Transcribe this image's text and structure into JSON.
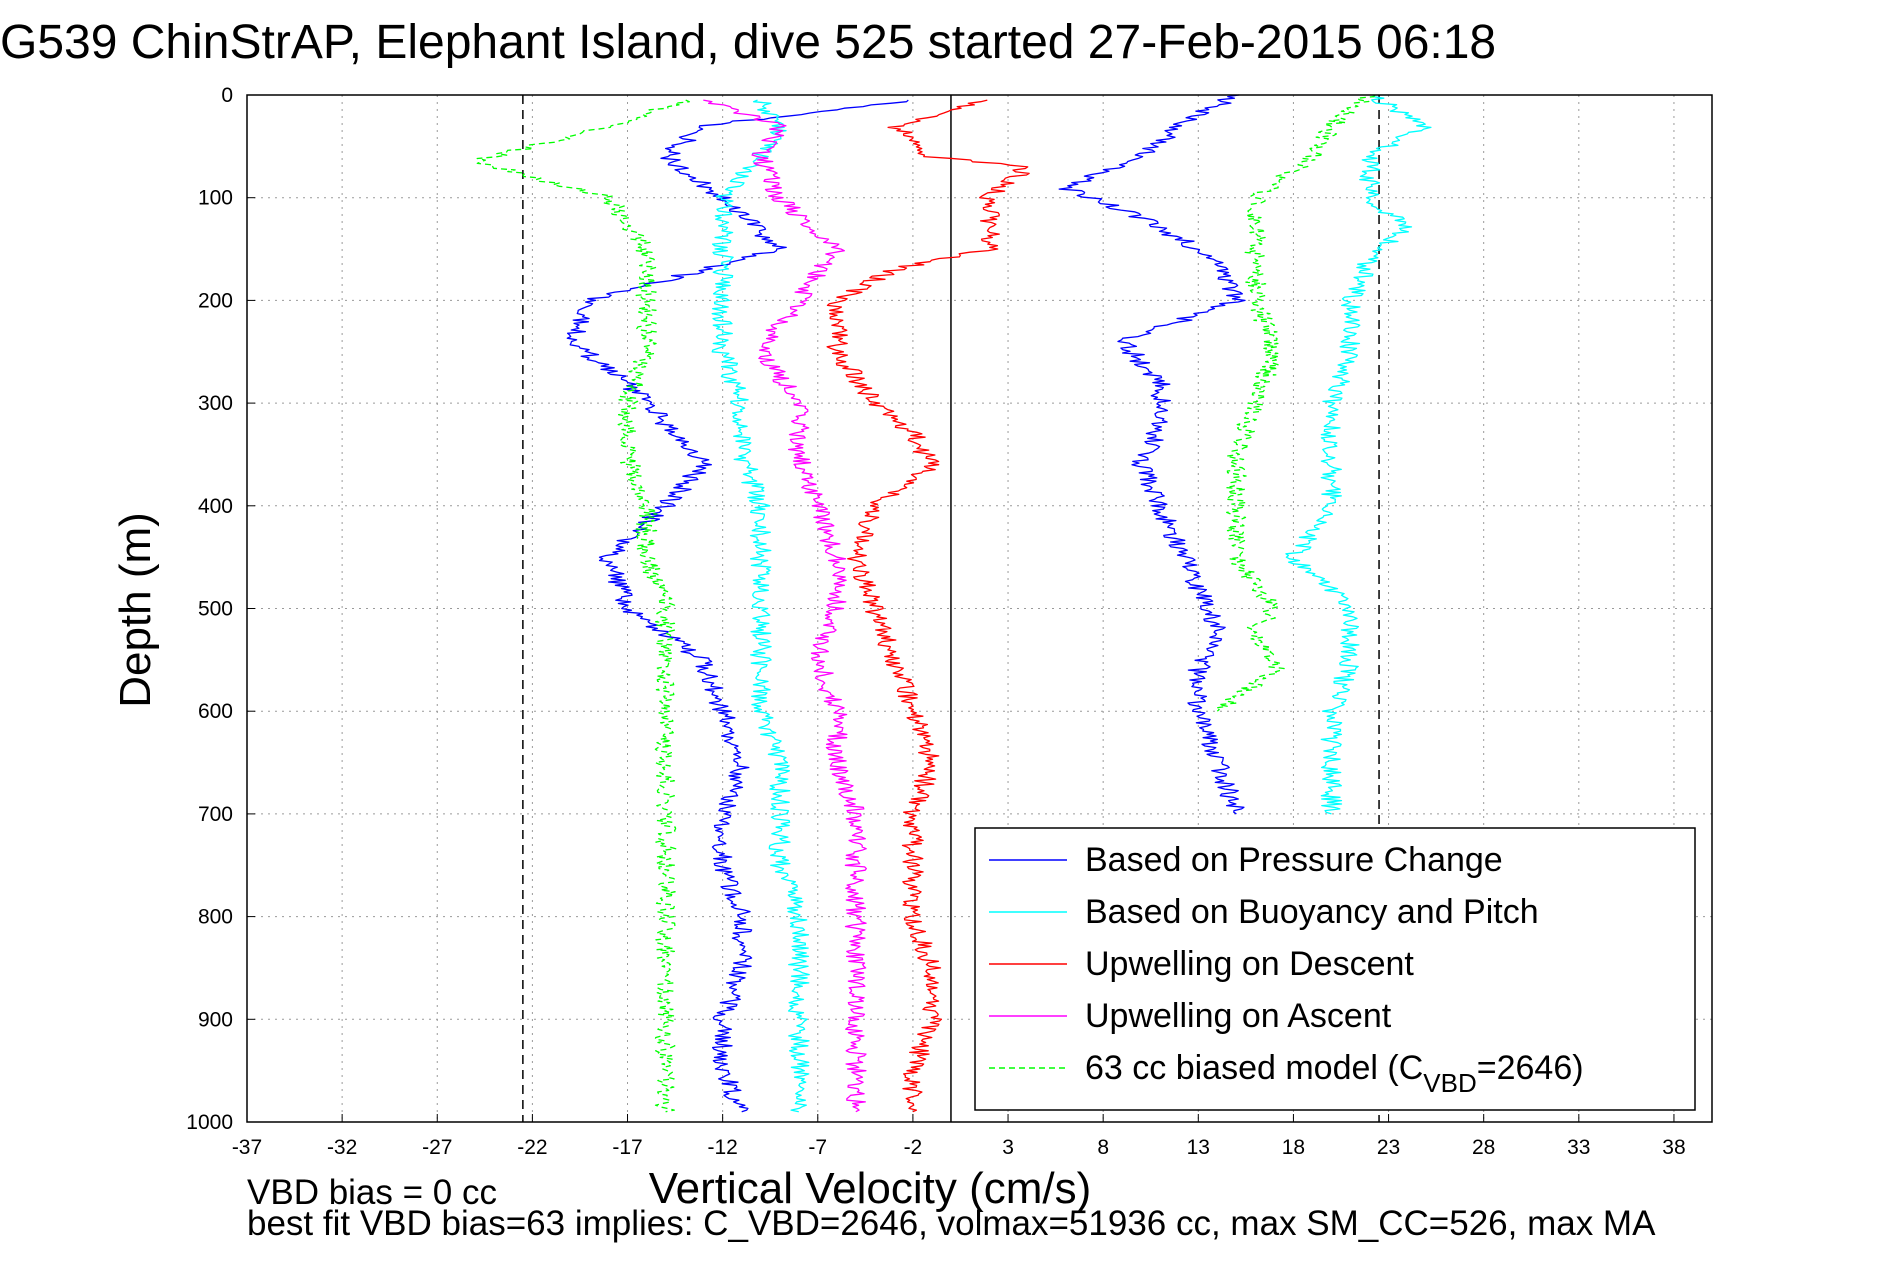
{
  "chart_data": {
    "type": "line",
    "title": "G539 ChinStrAP, Elephant Island, dive 525 started 27-Feb-2015 06:18",
    "xlabel": "Vertical Velocity (cm/s)",
    "ylabel": "Depth (m)",
    "xlim": [
      -37,
      40
    ],
    "ylim": [
      1000,
      0
    ],
    "y_reversed": true,
    "grid": true,
    "xticks": [
      -37,
      -32,
      -27,
      -22,
      -17,
      -12,
      -7,
      -2,
      3,
      8,
      13,
      18,
      23,
      28,
      33,
      38
    ],
    "yticks": [
      0,
      100,
      200,
      300,
      400,
      500,
      600,
      700,
      800,
      900,
      1000
    ],
    "legend_position": "bottom-right",
    "reference_lines": [
      {
        "x": -22.5,
        "style": "dashed",
        "color": "#000000"
      },
      {
        "x": 22.5,
        "style": "dashed",
        "color": "#000000"
      },
      {
        "x": 0,
        "style": "solid",
        "color": "#000000"
      }
    ],
    "series": [
      {
        "name": "Based on Pressure Change",
        "color": "#0000ff",
        "style": "solid",
        "y": [
          5,
          30,
          60,
          100,
          150,
          200,
          240,
          280,
          320,
          360,
          400,
          450,
          500,
          550,
          600,
          650,
          700,
          750,
          800,
          850,
          900,
          950,
          990
        ],
        "x": [
          -2,
          -13,
          -15,
          -12,
          -9,
          -19,
          -20,
          -17,
          -15,
          -13,
          -15,
          -18,
          -17,
          -13,
          -12,
          -11,
          -12,
          -12,
          -11,
          -11,
          -12,
          -12,
          -11
        ]
      },
      {
        "name": "Based on Buoyancy and Pitch",
        "color": "#00ffff",
        "style": "solid",
        "y": [
          5,
          30,
          60,
          100,
          150,
          200,
          250,
          300,
          350,
          400,
          450,
          500,
          550,
          600,
          650,
          700,
          750,
          800,
          850,
          900,
          950,
          990
        ],
        "x": [
          -10,
          -9,
          -10,
          -12,
          -12,
          -12,
          -12,
          -11,
          -11,
          -10,
          -10,
          -10,
          -10,
          -10,
          -9,
          -9,
          -9,
          -8,
          -8,
          -8,
          -8,
          -8
        ]
      },
      {
        "name": "Upwelling on Descent",
        "color": "#ff0000",
        "style": "solid",
        "y": [
          5,
          30,
          60,
          70,
          100,
          150,
          170,
          200,
          250,
          300,
          330,
          360,
          400,
          450,
          500,
          550,
          600,
          650,
          700,
          750,
          800,
          850,
          900,
          950,
          990
        ],
        "x": [
          2,
          -3,
          -1,
          4,
          2,
          2,
          -3,
          -6,
          -6,
          -4,
          -2,
          -1,
          -4,
          -5,
          -4,
          -3,
          -2,
          -1,
          -2,
          -2,
          -2,
          -1,
          -1,
          -2,
          -2
        ]
      },
      {
        "name": "Upwelling on Ascent",
        "color": "#ff00ff",
        "style": "solid",
        "y": [
          5,
          30,
          60,
          100,
          150,
          200,
          250,
          300,
          350,
          400,
          450,
          500,
          550,
          600,
          650,
          700,
          750,
          800,
          850,
          900,
          950,
          990
        ],
        "x": [
          -13,
          -9,
          -10,
          -9,
          -6,
          -8,
          -10,
          -8,
          -8,
          -7,
          -6,
          -6,
          -7,
          -6,
          -6,
          -5,
          -5,
          -5,
          -5,
          -5,
          -5,
          -5
        ]
      },
      {
        "name": "63 cc biased model (C_VBD=2646)",
        "legend_label": "63 cc biased model (C",
        "legend_sub": "VBD",
        "legend_tail": "=2646)",
        "color": "#00ff00",
        "style": "dashed",
        "y": [
          5,
          30,
          65,
          100,
          150,
          200,
          250,
          300,
          350,
          400,
          450,
          500,
          550,
          600,
          650,
          700,
          750,
          800,
          850,
          900,
          950,
          990
        ],
        "x": [
          -14,
          -18,
          -25,
          -18,
          -16,
          -16,
          -16,
          -17,
          -17,
          -16,
          -16,
          -15,
          -15,
          -15,
          -15,
          -15,
          -15,
          -15,
          -15,
          -15,
          -15,
          -15
        ]
      },
      {
        "name": "Based on Pressure Change (ascent)",
        "color": "#0000ff",
        "style": "solid",
        "in_legend": false,
        "y": [
          0,
          30,
          60,
          90,
          120,
          160,
          200,
          240,
          280,
          320,
          360,
          400,
          440,
          480,
          520,
          560,
          600,
          650,
          700
        ],
        "x": [
          15,
          12,
          10,
          6,
          10,
          14,
          15,
          9,
          11,
          11,
          10,
          11,
          12,
          13,
          14,
          13,
          13,
          14,
          15
        ]
      },
      {
        "name": "Based on Buoyancy and Pitch (ascent)",
        "color": "#00ffff",
        "style": "solid",
        "in_legend": false,
        "y": [
          0,
          30,
          60,
          100,
          130,
          160,
          200,
          250,
          300,
          350,
          400,
          450,
          500,
          550,
          600,
          650,
          700
        ],
        "x": [
          22,
          25,
          22,
          22,
          24,
          22,
          21,
          21,
          20,
          20,
          20,
          18,
          21,
          21,
          20,
          20,
          20
        ]
      },
      {
        "name": "63 cc biased model (ascent)",
        "color": "#00ff00",
        "style": "dashed",
        "in_legend": false,
        "y": [
          0,
          30,
          60,
          100,
          150,
          200,
          250,
          300,
          350,
          400,
          450,
          500,
          520,
          560,
          600
        ],
        "x": [
          22,
          20,
          19,
          16,
          16,
          16,
          17,
          16,
          15,
          15,
          15,
          17,
          16,
          17,
          14
        ]
      }
    ]
  },
  "annotations": {
    "line1": "VBD bias = 0 cc",
    "line2": "best fit VBD bias=63 implies: C_VBD=2646, volmax=51936 cc, max SM_CC=526, max MA"
  }
}
